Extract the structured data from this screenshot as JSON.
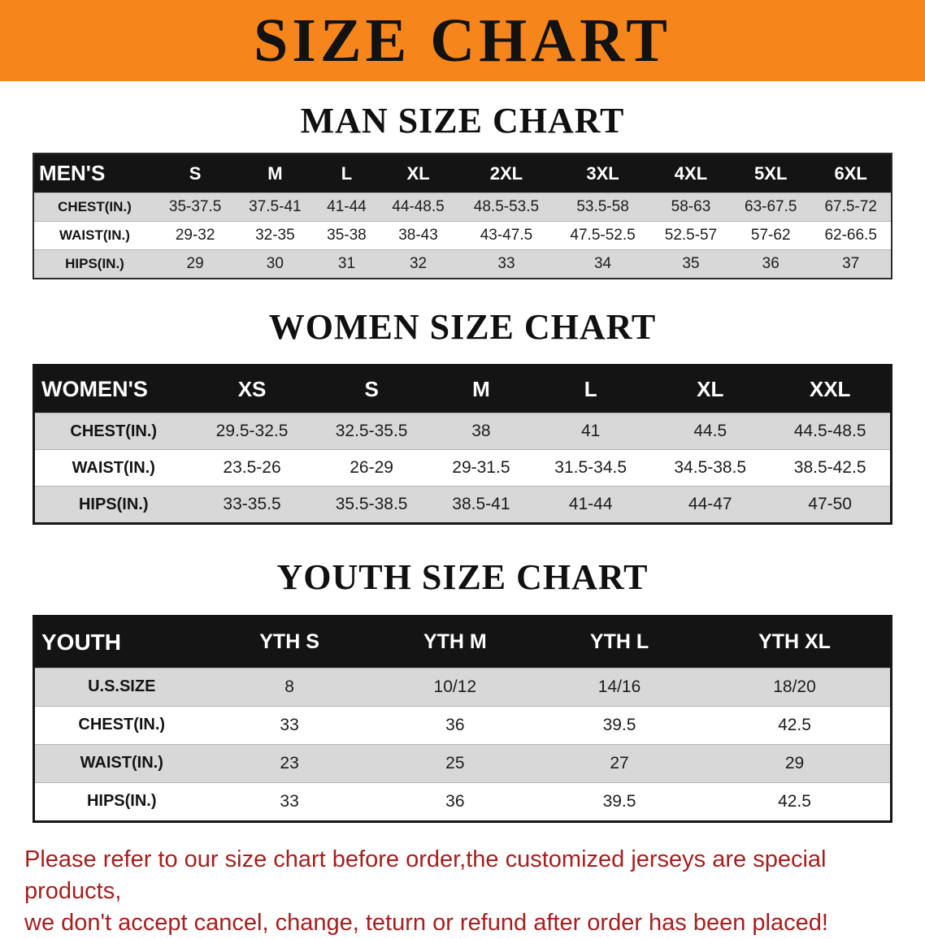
{
  "banner": {
    "title": "SIZE CHART"
  },
  "colors": {
    "banner_bg": "#f6861b",
    "table_header_bg": "#141414",
    "row_alt_gray": "#d8d8d8",
    "note_red": "#a81e1e"
  },
  "men": {
    "heading": "MAN SIZE CHART",
    "table": {
      "corner": "MEN'S",
      "columns": [
        "S",
        "M",
        "L",
        "XL",
        "2XL",
        "3XL",
        "4XL",
        "5XL",
        "6XL"
      ],
      "rows": [
        {
          "label": "CHEST(IN.)",
          "values": [
            "35-37.5",
            "37.5-41",
            "41-44",
            "44-48.5",
            "48.5-53.5",
            "53.5-58",
            "58-63",
            "63-67.5",
            "67.5-72"
          ]
        },
        {
          "label": "WAIST(IN.)",
          "values": [
            "29-32",
            "32-35",
            "35-38",
            "38-43",
            "43-47.5",
            "47.5-52.5",
            "52.5-57",
            "57-62",
            "62-66.5"
          ]
        },
        {
          "label": "HIPS(IN.)",
          "values": [
            "29",
            "30",
            "31",
            "32",
            "33",
            "34",
            "35",
            "36",
            "37"
          ]
        }
      ]
    }
  },
  "women": {
    "heading": "WOMEN SIZE CHART",
    "table": {
      "corner": "WOMEN'S",
      "columns": [
        "XS",
        "S",
        "M",
        "L",
        "XL",
        "XXL"
      ],
      "rows": [
        {
          "label": "CHEST(IN.)",
          "values": [
            "29.5-32.5",
            "32.5-35.5",
            "38",
            "41",
            "44.5",
            "44.5-48.5"
          ]
        },
        {
          "label": "WAIST(IN.)",
          "values": [
            "23.5-26",
            "26-29",
            "29-31.5",
            "31.5-34.5",
            "34.5-38.5",
            "38.5-42.5"
          ]
        },
        {
          "label": "HIPS(IN.)",
          "values": [
            "33-35.5",
            "35.5-38.5",
            "38.5-41",
            "41-44",
            "44-47",
            "47-50"
          ]
        }
      ]
    }
  },
  "youth": {
    "heading": "YOUTH SIZE CHART",
    "table": {
      "corner": "YOUTH",
      "columns": [
        "YTH S",
        "YTH M",
        "YTH L",
        "YTH XL"
      ],
      "rows": [
        {
          "label": "U.S.SIZE",
          "values": [
            "8",
            "10/12",
            "14/16",
            "18/20"
          ]
        },
        {
          "label": "CHEST(IN.)",
          "values": [
            "33",
            "36",
            "39.5",
            "42.5"
          ]
        },
        {
          "label": "WAIST(IN.)",
          "values": [
            "23",
            "25",
            "27",
            "29"
          ]
        },
        {
          "label": "HIPS(IN.)",
          "values": [
            "33",
            "36",
            "39.5",
            "42.5"
          ]
        }
      ]
    }
  },
  "note": {
    "line1": "Please refer to our size chart before order,the customized jerseys are special products,",
    "line2": "we don't accept cancel, change, teturn or refund after order has been placed!"
  }
}
